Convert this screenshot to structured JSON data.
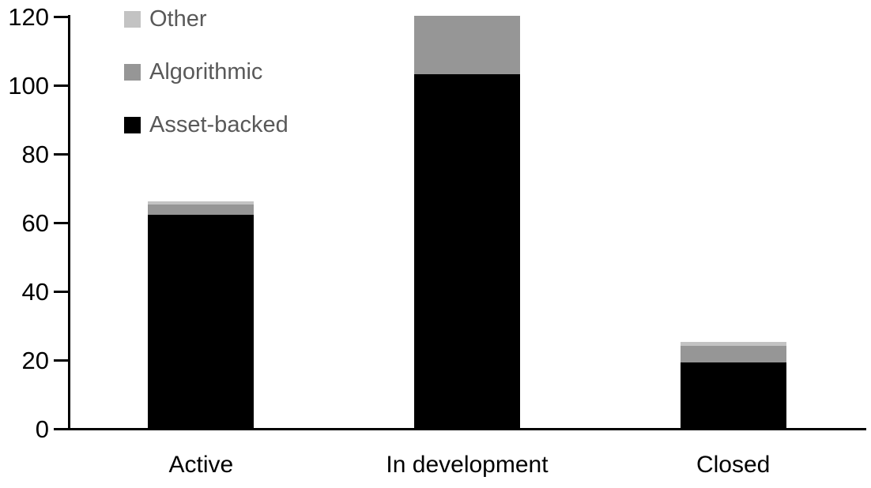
{
  "chart_data": {
    "type": "bar",
    "stacked": true,
    "title": "",
    "xlabel": "",
    "ylabel": "",
    "categories": [
      "Active",
      "In development",
      "Closed"
    ],
    "series": [
      {
        "name": "Asset-backed",
        "color": "#000000",
        "values": [
          62,
          103,
          19
        ]
      },
      {
        "name": "Algorithmic",
        "color": "#969696",
        "values": [
          3,
          17,
          5
        ]
      },
      {
        "name": "Other",
        "color": "#c3c3c3",
        "values": [
          1,
          0,
          1
        ]
      }
    ],
    "ylim": [
      0,
      120
    ],
    "ytick_interval": 20,
    "ytick_labels": [
      "0",
      "20",
      "40",
      "60",
      "80",
      "100",
      "120"
    ],
    "grid": false,
    "legend_position": "top-left",
    "legend_order_top_to_bottom": [
      "Other",
      "Algorithmic",
      "Asset-backed"
    ],
    "legend_text_color": "#595959",
    "axis_color": "#000000",
    "background_color": "#ffffff"
  }
}
